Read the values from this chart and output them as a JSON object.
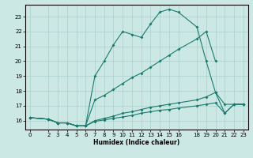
{
  "title": "",
  "xlabel": "Humidex (Indice chaleur)",
  "bg_color": "#cce8e4",
  "grid_color": "#aad0cc",
  "line_color": "#1a7a6e",
  "xlim": [
    -0.5,
    23.5
  ],
  "ylim": [
    15.4,
    23.8
  ],
  "xticks": [
    0,
    2,
    3,
    4,
    5,
    6,
    7,
    8,
    9,
    10,
    11,
    12,
    13,
    14,
    15,
    16,
    18,
    19,
    20,
    21,
    22,
    23
  ],
  "yticks": [
    16,
    17,
    18,
    19,
    20,
    21,
    22,
    23
  ],
  "curve_main_x": [
    0,
    2,
    3,
    4,
    5,
    6,
    7,
    8,
    9,
    10,
    11,
    12,
    13,
    14,
    15,
    16,
    18,
    19,
    20,
    21,
    22,
    23
  ],
  "curve_main_y": [
    16.2,
    16.1,
    15.85,
    15.85,
    15.65,
    15.65,
    19.0,
    20.0,
    21.1,
    22.0,
    21.8,
    21.6,
    22.5,
    23.3,
    23.5,
    23.3,
    22.3,
    20.0,
    17.9,
    17.1,
    17.1,
    17.1
  ],
  "curve_diag_x": [
    0,
    2,
    3,
    4,
    5,
    6,
    7,
    8,
    9,
    10,
    11,
    12,
    13,
    14,
    15,
    16,
    18,
    19,
    20
  ],
  "curve_diag_y": [
    16.2,
    16.1,
    15.85,
    15.85,
    15.65,
    15.65,
    17.4,
    17.7,
    18.1,
    18.5,
    18.9,
    19.2,
    19.6,
    20.0,
    20.4,
    20.8,
    21.5,
    22.0,
    20.0
  ],
  "curve_flat1_x": [
    0,
    2,
    3,
    4,
    5,
    6,
    7,
    8,
    9,
    10,
    11,
    12,
    13,
    14,
    15,
    16,
    18,
    19,
    20,
    21,
    22,
    23
  ],
  "curve_flat1_y": [
    16.2,
    16.1,
    15.85,
    15.85,
    15.65,
    15.65,
    16.0,
    16.15,
    16.3,
    16.5,
    16.6,
    16.75,
    16.9,
    17.0,
    17.1,
    17.2,
    17.4,
    17.6,
    17.9,
    16.5,
    17.1,
    17.1
  ],
  "curve_flat2_x": [
    0,
    2,
    3,
    4,
    5,
    6,
    7,
    8,
    9,
    10,
    11,
    12,
    13,
    14,
    15,
    16,
    18,
    19,
    20,
    21,
    22,
    23
  ],
  "curve_flat2_y": [
    16.2,
    16.1,
    15.85,
    15.85,
    15.65,
    15.65,
    15.95,
    16.05,
    16.15,
    16.25,
    16.35,
    16.5,
    16.6,
    16.7,
    16.75,
    16.85,
    17.0,
    17.1,
    17.2,
    16.5,
    17.1,
    17.1
  ]
}
